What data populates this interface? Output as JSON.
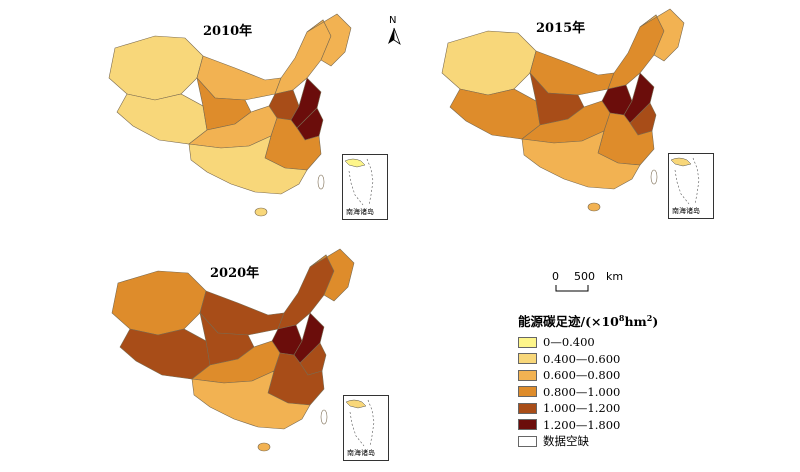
{
  "maps": [
    {
      "year": "2010年",
      "hot": [
        1,
        1,
        2,
        2,
        2,
        3,
        4,
        5,
        5,
        2,
        3,
        1
      ]
    },
    {
      "year": "2015年",
      "hot": [
        1,
        3,
        3,
        3,
        2,
        4,
        5,
        5,
        4,
        3,
        3,
        2
      ]
    },
    {
      "year": "2020年",
      "hot": [
        3,
        4,
        4,
        4,
        3,
        4,
        5,
        5,
        4,
        3,
        4,
        2
      ]
    }
  ],
  "inset_label": "南海诸岛",
  "north_label": "N",
  "scale": {
    "zero": "0",
    "label": "500",
    "unit": "km"
  },
  "legend": {
    "title_main": "能源碳足迹/(×10",
    "title_sup": "8",
    "title_end": "hm",
    "title_sup2": "2",
    "title_close": ")",
    "items": [
      {
        "label": "0—0.400",
        "color": "#fdf58a"
      },
      {
        "label": "0.400—0.600",
        "color": "#f8d77a"
      },
      {
        "label": "0.600—0.800",
        "color": "#f2b252"
      },
      {
        "label": "0.800—1.000",
        "color": "#de8c2b"
      },
      {
        "label": "1.000—1.200",
        "color": "#a84d18"
      },
      {
        "label": "1.200—1.800",
        "color": "#6b0d0b"
      },
      {
        "label": "数据空缺",
        "color": "#ffffff"
      }
    ]
  }
}
